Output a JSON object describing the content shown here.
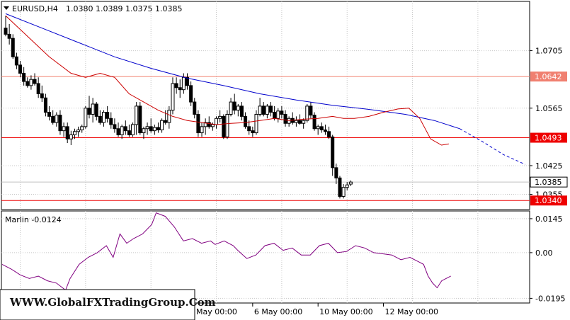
{
  "header": {
    "symbol": "EURUSD,H4",
    "ohlc": "1.0380 1.0389 1.0375 1.0385"
  },
  "indicator": {
    "label": "Marlin -0.0124",
    "axis_labels": [
      "0.0145",
      "0.00",
      "-0.0195"
    ],
    "axis_values": [
      0.0145,
      0.0,
      -0.0195
    ]
  },
  "watermark": "WWW.GlobalFXTradingGroup.Com",
  "colors": {
    "bull": "#000000",
    "bear": "#000000",
    "ma_fast": "#cc0000",
    "ma_slow": "#0000cc",
    "marlin": "#800080",
    "grid": "#c8c8c8",
    "level_red": "#ee0000",
    "level_salmon": "#f08070",
    "price_bg": "#ffffff"
  },
  "chart_data": {
    "type": "candlestick",
    "ylim": [
      1.0318,
      1.0825
    ],
    "price_axis_labels": [
      "1.0705",
      "1.0565",
      "1.0425",
      "1.0355"
    ],
    "price_axis_values": [
      1.0705,
      1.0565,
      1.0425,
      1.0355
    ],
    "x_ticks": [
      {
        "label": "4 May 00:00",
        "index": 50
      },
      {
        "label": "6 May 00:00",
        "index": 68
      },
      {
        "label": "10 May 00:00",
        "index": 86
      },
      {
        "label": "12 May 00:00",
        "index": 104
      }
    ],
    "levels": [
      {
        "value": 1.0642,
        "label": "1.0642",
        "style": "salmon"
      },
      {
        "value": 1.0493,
        "label": "1.0493",
        "style": "red"
      },
      {
        "value": 1.034,
        "label": "1.0340",
        "style": "red"
      }
    ],
    "current_price": {
      "value": 1.0385,
      "label": "1.0385"
    },
    "candles": [
      [
        1.076,
        1.079,
        1.074,
        1.0745
      ],
      [
        1.0745,
        1.077,
        1.072,
        1.0735
      ],
      [
        1.0735,
        1.0745,
        1.0685,
        1.069
      ],
      [
        1.069,
        1.07,
        1.066,
        1.067
      ],
      [
        1.067,
        1.068,
        1.064,
        1.065
      ],
      [
        1.065,
        1.0665,
        1.062,
        1.063
      ],
      [
        1.063,
        1.064,
        1.0615,
        1.062
      ],
      [
        1.062,
        1.0645,
        1.061,
        1.0635
      ],
      [
        1.0635,
        1.065,
        1.062,
        1.0625
      ],
      [
        1.0625,
        1.064,
        1.059,
        1.06
      ],
      [
        1.06,
        1.062,
        1.058,
        1.059
      ],
      [
        1.059,
        1.06,
        1.0545,
        1.0555
      ],
      [
        1.0555,
        1.057,
        1.0535,
        1.0545
      ],
      [
        1.0545,
        1.056,
        1.0525,
        1.053
      ],
      [
        1.053,
        1.0555,
        1.052,
        1.0548
      ],
      [
        1.0548,
        1.056,
        1.05,
        1.051
      ],
      [
        1.051,
        1.053,
        1.0495,
        1.052
      ],
      [
        1.052,
        1.053,
        1.048,
        1.049
      ],
      [
        1.049,
        1.051,
        1.0475,
        1.05
      ],
      [
        1.05,
        1.0515,
        1.049,
        1.0508
      ],
      [
        1.0508,
        1.052,
        1.0495,
        1.0512
      ],
      [
        1.0512,
        1.0525,
        1.0505,
        1.052
      ],
      [
        1.052,
        1.057,
        1.0515,
        1.0565
      ],
      [
        1.0565,
        1.0595,
        1.054,
        1.055
      ],
      [
        1.055,
        1.059,
        1.053,
        1.0575
      ],
      [
        1.0575,
        1.058,
        1.0535,
        1.0545
      ],
      [
        1.0545,
        1.056,
        1.0525,
        1.053
      ],
      [
        1.053,
        1.056,
        1.052,
        1.0555
      ],
      [
        1.0555,
        1.057,
        1.053,
        1.054
      ],
      [
        1.054,
        1.0555,
        1.0515,
        1.0525
      ],
      [
        1.0525,
        1.054,
        1.0505,
        1.0515
      ],
      [
        1.0515,
        1.053,
        1.0495,
        1.05
      ],
      [
        1.05,
        1.0525,
        1.049,
        1.052
      ],
      [
        1.052,
        1.0535,
        1.05,
        1.051
      ],
      [
        1.051,
        1.0525,
        1.0495,
        1.05
      ],
      [
        1.05,
        1.053,
        1.0495,
        1.0525
      ],
      [
        1.0525,
        1.058,
        1.05,
        1.057
      ],
      [
        1.057,
        1.058,
        1.05,
        1.0505
      ],
      [
        1.0505,
        1.052,
        1.049,
        1.0515
      ],
      [
        1.0515,
        1.053,
        1.05,
        1.052
      ],
      [
        1.052,
        1.054,
        1.0505,
        1.051
      ],
      [
        1.051,
        1.0525,
        1.05,
        1.0518
      ],
      [
        1.0518,
        1.053,
        1.0505,
        1.0512
      ],
      [
        1.0512,
        1.054,
        1.0505,
        1.0535
      ],
      [
        1.0535,
        1.056,
        1.0525,
        1.053
      ],
      [
        1.053,
        1.057,
        1.0515,
        1.056
      ],
      [
        1.056,
        1.064,
        1.055,
        1.0625
      ],
      [
        1.0625,
        1.064,
        1.06,
        1.0615
      ],
      [
        1.0615,
        1.0635,
        1.059,
        1.061
      ],
      [
        1.061,
        1.065,
        1.06,
        1.064
      ],
      [
        1.064,
        1.065,
        1.061,
        1.062
      ],
      [
        1.062,
        1.063,
        1.057,
        1.058
      ],
      [
        1.058,
        1.059,
        1.054,
        1.055
      ],
      [
        1.055,
        1.056,
        1.0495,
        1.0505
      ],
      [
        1.0505,
        1.053,
        1.0495,
        1.052
      ],
      [
        1.052,
        1.054,
        1.05,
        1.053
      ],
      [
        1.053,
        1.0545,
        1.0515,
        1.052
      ],
      [
        1.052,
        1.053,
        1.051,
        1.0525
      ],
      [
        1.0525,
        1.0545,
        1.0515,
        1.054
      ],
      [
        1.054,
        1.056,
        1.053,
        1.0545
      ],
      [
        1.0545,
        1.055,
        1.049,
        1.0495
      ],
      [
        1.0495,
        1.056,
        1.049,
        1.055
      ],
      [
        1.055,
        1.059,
        1.0545,
        1.058
      ],
      [
        1.058,
        1.06,
        1.055,
        1.056
      ],
      [
        1.056,
        1.0575,
        1.0545,
        1.057
      ],
      [
        1.057,
        1.058,
        1.0535,
        1.0545
      ],
      [
        1.0545,
        1.0555,
        1.0515,
        1.052
      ],
      [
        1.052,
        1.0535,
        1.05,
        1.051
      ],
      [
        1.051,
        1.052,
        1.0495,
        1.0505
      ],
      [
        1.0505,
        1.056,
        1.05,
        1.055
      ],
      [
        1.055,
        1.059,
        1.0545,
        1.057
      ],
      [
        1.057,
        1.058,
        1.0545,
        1.055
      ],
      [
        1.055,
        1.0575,
        1.054,
        1.057
      ],
      [
        1.057,
        1.058,
        1.0545,
        1.0555
      ],
      [
        1.0555,
        1.057,
        1.0535,
        1.054
      ],
      [
        1.054,
        1.0565,
        1.053,
        1.0558
      ],
      [
        1.0558,
        1.057,
        1.054,
        1.055
      ],
      [
        1.055,
        1.056,
        1.052,
        1.0528
      ],
      [
        1.0528,
        1.0545,
        1.052,
        1.054
      ],
      [
        1.054,
        1.0555,
        1.0525,
        1.053
      ],
      [
        1.053,
        1.0545,
        1.052,
        1.0535
      ],
      [
        1.0535,
        1.055,
        1.0525,
        1.0528
      ],
      [
        1.0528,
        1.054,
        1.0515,
        1.0535
      ],
      [
        1.0535,
        1.0575,
        1.053,
        1.057
      ],
      [
        1.057,
        1.058,
        1.054,
        1.0548
      ],
      [
        1.0548,
        1.0555,
        1.051,
        1.0515
      ],
      [
        1.0515,
        1.0525,
        1.05,
        1.052
      ],
      [
        1.052,
        1.053,
        1.0505,
        1.0512
      ],
      [
        1.0512,
        1.0525,
        1.05,
        1.0508
      ],
      [
        1.0508,
        1.052,
        1.049,
        1.0495
      ],
      [
        1.0495,
        1.05,
        1.04,
        1.042
      ],
      [
        1.042,
        1.043,
        1.038,
        1.0395
      ],
      [
        1.0395,
        1.04,
        1.0345,
        1.035
      ],
      [
        1.035,
        1.038,
        1.0345,
        1.0372
      ],
      [
        1.0372,
        1.0385,
        1.0365,
        1.0378
      ],
      [
        1.038,
        1.0389,
        1.0375,
        1.0385
      ]
    ],
    "ma_fast": [
      [
        0,
        1.079
      ],
      [
        6,
        1.074
      ],
      [
        12,
        1.069
      ],
      [
        18,
        1.065
      ],
      [
        22,
        1.064
      ],
      [
        26,
        1.065
      ],
      [
        30,
        1.064
      ],
      [
        34,
        1.06
      ],
      [
        38,
        1.058
      ],
      [
        42,
        1.056
      ],
      [
        46,
        1.0545
      ],
      [
        50,
        1.0535
      ],
      [
        54,
        1.053
      ],
      [
        58,
        1.0525
      ],
      [
        62,
        1.0528
      ],
      [
        66,
        1.053
      ],
      [
        70,
        1.0535
      ],
      [
        74,
        1.054
      ],
      [
        78,
        1.0535
      ],
      [
        82,
        1.0538
      ],
      [
        86,
        1.054
      ],
      [
        90,
        1.0545
      ],
      [
        93,
        1.054
      ],
      [
        96,
        1.054
      ],
      [
        100,
        1.0545
      ],
      [
        104,
        1.0555
      ],
      [
        108,
        1.0563
      ],
      [
        111,
        1.0565
      ],
      [
        114,
        1.054
      ],
      [
        117,
        1.049
      ],
      [
        120,
        1.0475
      ],
      [
        122,
        1.0478
      ]
    ],
    "ma_slow": [
      [
        0,
        1.0795
      ],
      [
        10,
        1.076
      ],
      [
        20,
        1.0725
      ],
      [
        30,
        1.069
      ],
      [
        40,
        1.0662
      ],
      [
        50,
        1.0638
      ],
      [
        60,
        1.062
      ],
      [
        70,
        1.06
      ],
      [
        80,
        1.0585
      ],
      [
        90,
        1.0572
      ],
      [
        100,
        1.0562
      ],
      [
        110,
        1.055
      ],
      [
        118,
        1.0535
      ],
      [
        125,
        1.0515
      ]
    ],
    "ma_slow_projection": [
      [
        125,
        1.0515
      ],
      [
        131,
        1.0485
      ],
      [
        137,
        1.0452
      ],
      [
        143,
        1.0428
      ]
    ],
    "marlin": [
      [
        0,
        -0.005
      ],
      [
        4,
        -0.007
      ],
      [
        8,
        -0.0095
      ],
      [
        12,
        -0.011
      ],
      [
        16,
        -0.01
      ],
      [
        20,
        -0.012
      ],
      [
        24,
        -0.013
      ],
      [
        28,
        -0.016
      ],
      [
        30,
        -0.011
      ],
      [
        34,
        -0.005
      ],
      [
        38,
        -0.002
      ],
      [
        42,
        0.0
      ],
      [
        46,
        0.003
      ],
      [
        49,
        -0.002
      ],
      [
        52,
        0.008
      ],
      [
        55,
        0.004
      ],
      [
        58,
        0.006
      ],
      [
        62,
        0.008
      ],
      [
        66,
        0.012
      ],
      [
        68,
        0.017
      ],
      [
        72,
        0.0155
      ],
      [
        76,
        0.011
      ],
      [
        78,
        0.008
      ],
      [
        80,
        0.005
      ],
      [
        84,
        0.006
      ],
      [
        88,
        0.004
      ],
      [
        92,
        0.005
      ],
      [
        94,
        0.0035
      ],
      [
        98,
        0.005
      ],
      [
        102,
        0.003
      ],
      [
        104,
        0.001
      ],
      [
        108,
        -0.0025
      ],
      [
        112,
        -0.001
      ],
      [
        116,
        0.003
      ],
      [
        120,
        0.004
      ],
      [
        124,
        0.001
      ],
      [
        128,
        0.002
      ],
      [
        132,
        -0.001
      ],
      [
        136,
        -0.001
      ],
      [
        140,
        0.003
      ],
      [
        144,
        0.004
      ],
      [
        148,
        0.0
      ],
      [
        152,
        0.0005
      ],
      [
        156,
        0.003
      ],
      [
        160,
        0.002
      ],
      [
        164,
        0.0
      ],
      [
        168,
        -0.0005
      ],
      [
        172,
        -0.001
      ],
      [
        176,
        -0.003
      ],
      [
        180,
        -0.002
      ],
      [
        184,
        -0.004
      ],
      [
        186,
        -0.005
      ],
      [
        188,
        -0.01
      ],
      [
        190,
        -0.013
      ],
      [
        192,
        -0.015
      ],
      [
        194,
        -0.012
      ],
      [
        196,
        -0.011
      ],
      [
        198,
        -0.01
      ]
    ]
  }
}
